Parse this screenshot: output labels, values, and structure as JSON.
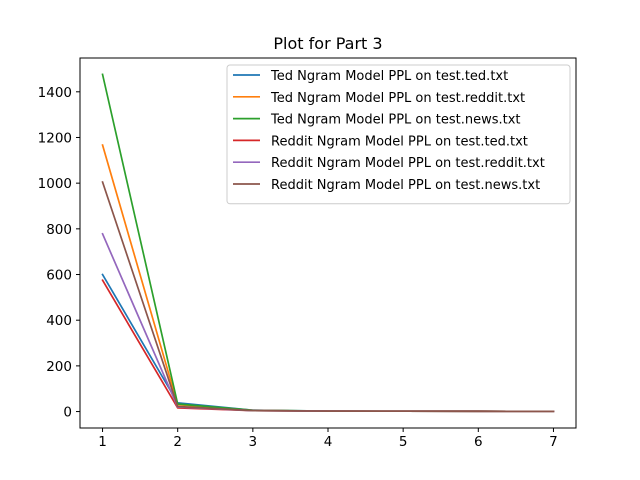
{
  "chart_data": {
    "type": "line",
    "title": "Plot for Part 3",
    "xlabel": "",
    "ylabel": "",
    "x": [
      1,
      2,
      3,
      4,
      5,
      6,
      7
    ],
    "xlim": [
      0.7,
      7.3
    ],
    "ylim": [
      -72,
      1548
    ],
    "xticks": [
      1,
      2,
      3,
      4,
      5,
      6,
      7
    ],
    "yticks": [
      0,
      200,
      400,
      600,
      800,
      1000,
      1200,
      1400
    ],
    "grid": false,
    "legend_position": "top-right",
    "series": [
      {
        "name": "Ted Ngram Model PPL on test.ted.txt",
        "color": "#1f77b4",
        "values": [
          600,
          38,
          6,
          2,
          1.5,
          1.2,
          1.1
        ]
      },
      {
        "name": "Ted Ngram Model PPL on test.reddit.txt",
        "color": "#ff7f0e",
        "values": [
          1167,
          30,
          5,
          2,
          1.5,
          1.2,
          1.1
        ]
      },
      {
        "name": "Ted Ngram Model PPL on test.news.txt",
        "color": "#2ca02c",
        "values": [
          1476,
          33,
          6,
          2,
          1.5,
          1.2,
          1.1
        ]
      },
      {
        "name": "Reddit Ngram Model PPL on test.ted.txt",
        "color": "#d62728",
        "values": [
          575,
          16,
          4,
          2,
          1.5,
          1.2,
          1.1
        ]
      },
      {
        "name": "Reddit Ngram Model PPL on test.reddit.txt",
        "color": "#9467bd",
        "values": [
          778,
          20,
          4,
          2,
          1.5,
          1.2,
          1.1
        ]
      },
      {
        "name": "Reddit Ngram Model PPL on test.news.txt",
        "color": "#8c564b",
        "values": [
          1005,
          22,
          4,
          2,
          1.5,
          1.2,
          1.1
        ]
      }
    ]
  }
}
